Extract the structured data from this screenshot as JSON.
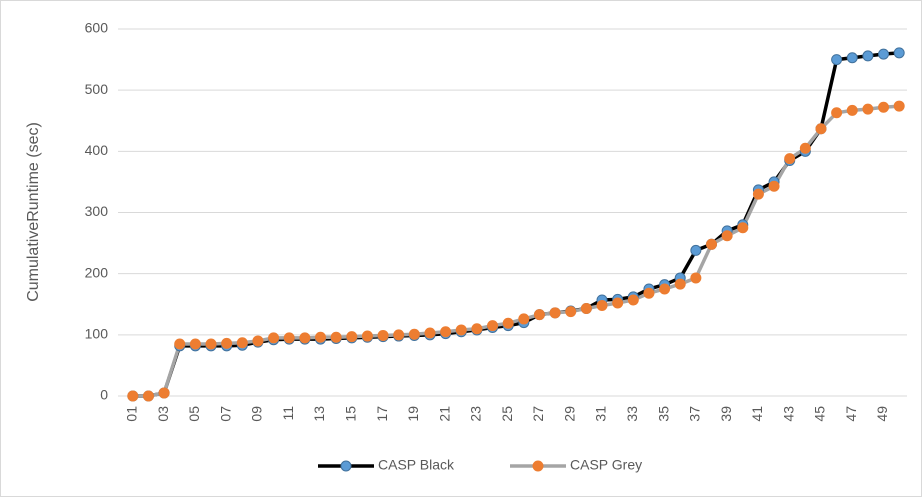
{
  "chart_data": {
    "type": "line",
    "y_label": "CumulativeRuntime (sec)",
    "categories": [
      "01",
      null,
      "03",
      null,
      "05",
      null,
      "07",
      null,
      "09",
      null,
      "11",
      null,
      "13",
      null,
      "15",
      null,
      "17",
      null,
      "19",
      null,
      "21",
      null,
      "23",
      null,
      "25",
      null,
      "27",
      null,
      "29",
      null,
      "31",
      null,
      "33",
      null,
      "35",
      null,
      "37",
      null,
      "39",
      null,
      "41",
      null,
      "43",
      null,
      "45",
      null,
      "47",
      null,
      "49",
      null
    ],
    "series": [
      {
        "name": "CASP Black",
        "color": "#000000",
        "marker_color": "#5b9bd5",
        "values": [
          0,
          0,
          5,
          82,
          82,
          82,
          82,
          83,
          88,
          92,
          93,
          93,
          93,
          94,
          95,
          96,
          97,
          98,
          99,
          100,
          102,
          105,
          108,
          112,
          115,
          120,
          133,
          136,
          139,
          143,
          157,
          158,
          162,
          175,
          182,
          193,
          238,
          248,
          270,
          280,
          337,
          350,
          385,
          400,
          437,
          550,
          553,
          556,
          559,
          561
        ]
      },
      {
        "name": "CASP Grey",
        "color": "#a5a5a5",
        "marker_color": "#ed7d31",
        "values": [
          0,
          0,
          5,
          85,
          85,
          85,
          86,
          87,
          90,
          95,
          95,
          95,
          96,
          96,
          97,
          98,
          99,
          100,
          101,
          103,
          105,
          108,
          110,
          115,
          119,
          126,
          133,
          136,
          138,
          143,
          148,
          152,
          157,
          168,
          175,
          183,
          193,
          248,
          262,
          275,
          330,
          343,
          388,
          405,
          437,
          463,
          467,
          469,
          472,
          474
        ]
      }
    ],
    "ylim": [
      0,
      600
    ],
    "yticks": [
      0,
      100,
      200,
      300,
      400,
      500,
      600
    ],
    "grid": true,
    "legend": "bottom"
  }
}
